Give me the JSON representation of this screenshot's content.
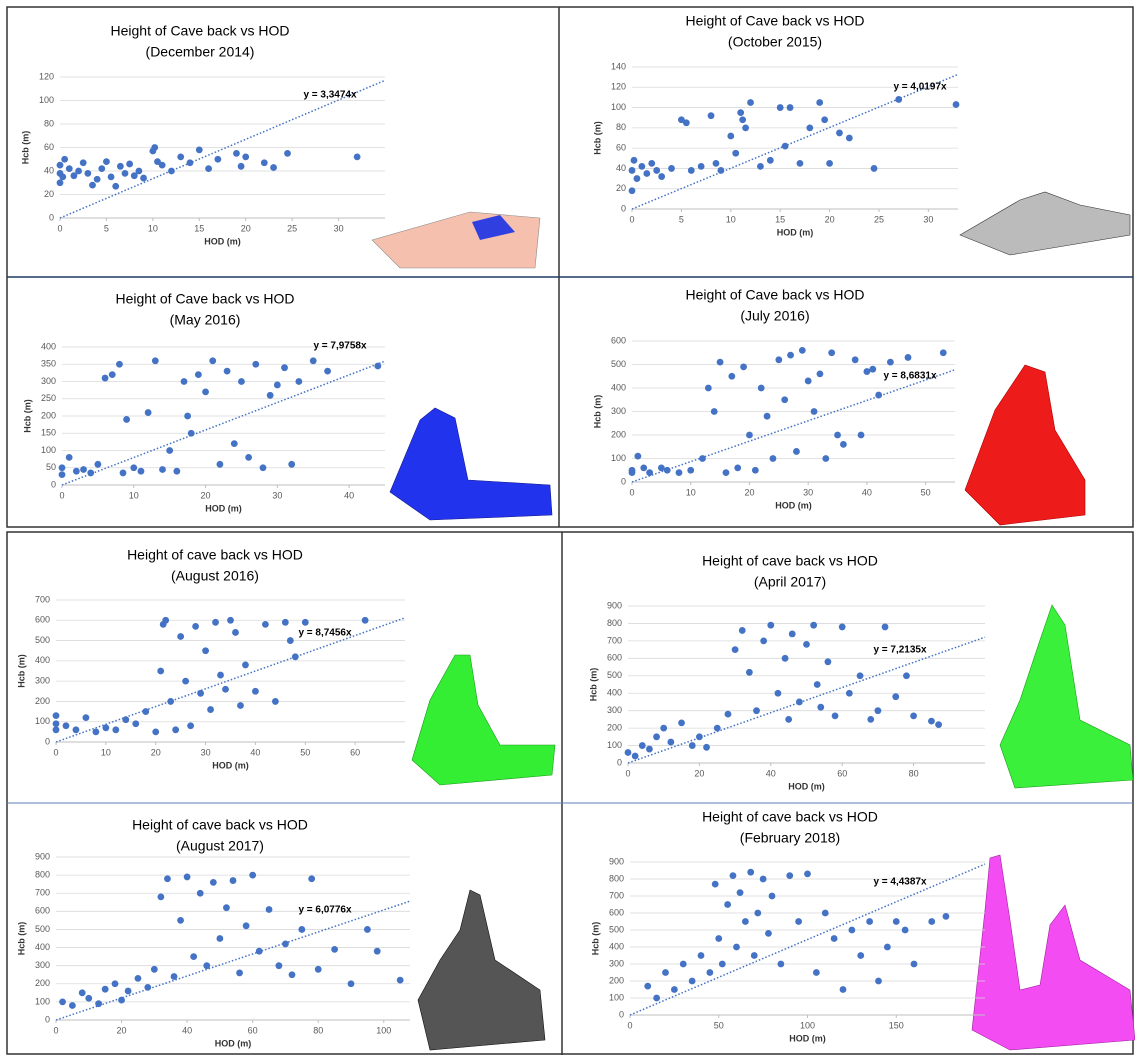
{
  "chart_data": [
    {
      "type": "scatter",
      "title": "Height of Cave back vs HOD",
      "subtitle": "(December 2014)",
      "x_label": "HOD (m)",
      "y_label": "Hcb (m)",
      "color": "#4472c4",
      "xlim": [
        0,
        35
      ],
      "ylim": [
        0,
        120
      ],
      "xticks": [
        0,
        5,
        10,
        15,
        20,
        25,
        30
      ],
      "yticks": [
        0,
        20,
        40,
        60,
        80,
        100,
        120
      ],
      "x": [
        0,
        0,
        0,
        0.3,
        0.5,
        1,
        1.5,
        2,
        2.5,
        3,
        3.5,
        4,
        4.5,
        5,
        5.5,
        6,
        6.5,
        7,
        7.5,
        8,
        8.5,
        9,
        10,
        10.2,
        10.5,
        11,
        12,
        13,
        14,
        15,
        16,
        17,
        19,
        19.5,
        20,
        22,
        23,
        24.5,
        32
      ],
      "values": [
        30,
        38,
        45,
        35,
        50,
        42,
        36,
        40,
        47,
        38,
        28,
        33,
        42,
        48,
        35,
        27,
        44,
        38,
        46,
        36,
        40,
        34,
        57,
        60,
        48,
        45,
        40,
        52,
        47,
        58,
        42,
        50,
        55,
        44,
        52,
        47,
        43,
        55,
        52
      ],
      "trendline": {
        "slope": 3.3474,
        "label": "y = 3,3474x"
      }
    },
    {
      "type": "scatter",
      "title": "Height of Cave back vs HOD",
      "subtitle": "(October 2015)",
      "x_label": "HOD (m)",
      "y_label": "Hcb (m)",
      "color": "#4472c4",
      "xlim": [
        0,
        33
      ],
      "ylim": [
        0,
        140
      ],
      "xticks": [
        0,
        5,
        10,
        15,
        20,
        25,
        30
      ],
      "yticks": [
        0,
        20,
        40,
        60,
        80,
        100,
        120,
        140
      ],
      "x": [
        0,
        0,
        0.2,
        0.5,
        1,
        1.5,
        2,
        2.5,
        3,
        4,
        5,
        5.5,
        6,
        7,
        8,
        8.5,
        9,
        10,
        10.5,
        11,
        11.2,
        11.5,
        12,
        13,
        14,
        15,
        15.5,
        16,
        17,
        18,
        19,
        19.5,
        20,
        21,
        22,
        24.5,
        27,
        32.8
      ],
      "values": [
        18,
        38,
        48,
        30,
        42,
        35,
        45,
        38,
        32,
        40,
        88,
        85,
        38,
        42,
        92,
        45,
        38,
        72,
        55,
        95,
        88,
        80,
        105,
        42,
        48,
        100,
        62,
        100,
        45,
        80,
        105,
        88,
        45,
        75,
        70,
        40,
        108,
        103
      ],
      "trendline": {
        "slope": 4.0197,
        "label": "y = 4,0197x"
      }
    },
    {
      "type": "scatter",
      "title": "Height of Cave back vs HOD",
      "subtitle": "(May 2016)",
      "x_label": "HOD (m)",
      "y_label": "Hcb (m)",
      "color": "#4472c4",
      "xlim": [
        0,
        45
      ],
      "ylim": [
        0,
        400
      ],
      "xticks": [
        0,
        10,
        20,
        30,
        40
      ],
      "yticks": [
        0,
        50,
        100,
        150,
        200,
        250,
        300,
        350,
        400
      ],
      "x": [
        0,
        0,
        1,
        2,
        3,
        4,
        5,
        6,
        7,
        8,
        8.5,
        9,
        10,
        11,
        12,
        13,
        14,
        15,
        16,
        17,
        17.5,
        18,
        19,
        20,
        21,
        22,
        23,
        24,
        25,
        26,
        27,
        28,
        29,
        30,
        31,
        32,
        33,
        35,
        37,
        44
      ],
      "values": [
        50,
        30,
        80,
        40,
        45,
        35,
        60,
        310,
        320,
        350,
        35,
        190,
        50,
        40,
        210,
        360,
        45,
        100,
        40,
        300,
        200,
        150,
        320,
        270,
        360,
        60,
        330,
        120,
        300,
        80,
        350,
        50,
        260,
        290,
        340,
        60,
        300,
        360,
        330,
        345
      ],
      "trendline": {
        "slope": 7.9758,
        "label": "y = 7,9758x"
      }
    },
    {
      "type": "scatter",
      "title": "Height of Cave back vs HOD",
      "subtitle": "(July 2016)",
      "x_label": "HOD (m)",
      "y_label": "Hcb (m)",
      "color": "#4472c4",
      "xlim": [
        0,
        55
      ],
      "ylim": [
        0,
        600
      ],
      "xticks": [
        0,
        10,
        20,
        30,
        40,
        50
      ],
      "yticks": [
        0,
        100,
        200,
        300,
        400,
        500,
        600
      ],
      "x": [
        0,
        0,
        1,
        2,
        3,
        5,
        6,
        8,
        10,
        12,
        13,
        14,
        15,
        16,
        17,
        18,
        19,
        20,
        21,
        22,
        23,
        24,
        25,
        26,
        27,
        28,
        29,
        30,
        31,
        32,
        33,
        34,
        35,
        36,
        38,
        39,
        40,
        41,
        42,
        44,
        47,
        53
      ],
      "values": [
        50,
        40,
        110,
        60,
        40,
        60,
        50,
        40,
        50,
        100,
        400,
        300,
        510,
        40,
        450,
        60,
        490,
        200,
        50,
        400,
        280,
        100,
        520,
        350,
        540,
        130,
        560,
        430,
        300,
        460,
        100,
        550,
        200,
        160,
        520,
        200,
        470,
        480,
        370,
        510,
        530,
        550
      ],
      "trendline": {
        "slope": 8.6831,
        "label": "y = 8,6831x"
      }
    },
    {
      "type": "scatter",
      "title": "Height of cave back vs HOD",
      "subtitle": "(August 2016)",
      "x_label": "HOD (m)",
      "y_label": "Hcb (m)",
      "color": "#4472c4",
      "xlim": [
        0,
        70
      ],
      "ylim": [
        0,
        700
      ],
      "xticks": [
        0,
        10,
        20,
        30,
        40,
        50,
        60
      ],
      "yticks": [
        0,
        100,
        200,
        300,
        400,
        500,
        600,
        700
      ],
      "x": [
        0,
        0,
        0,
        2,
        4,
        6,
        8,
        10,
        12,
        14,
        16,
        18,
        20,
        21,
        21.5,
        22,
        23,
        24,
        25,
        26,
        27,
        28,
        29,
        30,
        31,
        32,
        33,
        34,
        35,
        36,
        37,
        38,
        40,
        42,
        44,
        46,
        47,
        48,
        50,
        62
      ],
      "values": [
        130,
        60,
        90,
        80,
        60,
        120,
        50,
        70,
        60,
        110,
        90,
        150,
        50,
        350,
        580,
        600,
        200,
        60,
        520,
        300,
        80,
        570,
        240,
        450,
        160,
        590,
        330,
        260,
        600,
        540,
        180,
        380,
        250,
        580,
        200,
        590,
        500,
        420,
        590,
        600
      ],
      "trendline": {
        "slope": 8.7456,
        "label": "y = 8,7456x"
      }
    },
    {
      "type": "scatter",
      "title": "Height of cave back vs HOD",
      "subtitle": "(April 2017)",
      "x_label": "HOD (m)",
      "y_label": "Hcb (m)",
      "color": "#4472c4",
      "xlim": [
        0,
        100
      ],
      "ylim": [
        0,
        900
      ],
      "xticks": [
        0,
        20,
        40,
        60,
        80
      ],
      "yticks": [
        0,
        100,
        200,
        300,
        400,
        500,
        600,
        700,
        800,
        900
      ],
      "x": [
        0,
        2,
        4,
        6,
        8,
        10,
        12,
        15,
        18,
        20,
        22,
        25,
        28,
        30,
        32,
        34,
        36,
        38,
        40,
        42,
        44,
        45,
        46,
        48,
        50,
        52,
        53,
        54,
        56,
        58,
        60,
        62,
        65,
        68,
        70,
        72,
        75,
        78,
        80,
        85,
        87
      ],
      "values": [
        60,
        40,
        100,
        80,
        150,
        200,
        120,
        230,
        100,
        150,
        90,
        200,
        280,
        650,
        760,
        520,
        300,
        700,
        790,
        400,
        600,
        250,
        740,
        350,
        680,
        790,
        450,
        320,
        580,
        270,
        780,
        400,
        500,
        250,
        300,
        780,
        380,
        500,
        270,
        240,
        220
      ],
      "trendline": {
        "slope": 7.2135,
        "label": "y = 7,2135x"
      }
    },
    {
      "type": "scatter",
      "title": "Height of cave back vs HOD",
      "subtitle": "(August 2017)",
      "x_label": "HOD (m)",
      "y_label": "Hcb (m)",
      "color": "#4472c4",
      "xlim": [
        0,
        108
      ],
      "ylim": [
        0,
        900
      ],
      "xticks": [
        0,
        20,
        40,
        60,
        80,
        100
      ],
      "yticks": [
        0,
        100,
        200,
        300,
        400,
        500,
        600,
        700,
        800,
        900
      ],
      "x": [
        2,
        5,
        8,
        10,
        13,
        15,
        18,
        20,
        22,
        25,
        28,
        30,
        32,
        34,
        36,
        38,
        40,
        42,
        44,
        46,
        48,
        50,
        52,
        54,
        56,
        58,
        60,
        62,
        65,
        68,
        70,
        72,
        75,
        78,
        80,
        85,
        90,
        95,
        98,
        105
      ],
      "values": [
        100,
        80,
        150,
        120,
        90,
        170,
        200,
        110,
        160,
        230,
        180,
        280,
        680,
        780,
        240,
        550,
        790,
        350,
        700,
        300,
        760,
        450,
        620,
        770,
        260,
        520,
        800,
        380,
        610,
        300,
        420,
        250,
        500,
        780,
        280,
        390,
        200,
        500,
        380,
        220
      ],
      "trendline": {
        "slope": 6.0776,
        "label": "y = 6,0776x"
      }
    },
    {
      "type": "scatter",
      "title": "Height of cave back vs HOD",
      "subtitle": "(February 2018)",
      "x_label": "HOD (m)",
      "y_label": "Hcb (m)",
      "color": "#4472c4",
      "xlim": [
        0,
        200
      ],
      "ylim": [
        0,
        900
      ],
      "xticks": [
        0,
        50,
        100,
        150
      ],
      "yticks": [
        0,
        100,
        200,
        300,
        400,
        500,
        600,
        700,
        800,
        900
      ],
      "x": [
        10,
        15,
        20,
        25,
        30,
        35,
        40,
        45,
        48,
        50,
        52,
        55,
        58,
        60,
        62,
        65,
        68,
        70,
        72,
        75,
        78,
        80,
        85,
        90,
        95,
        100,
        105,
        110,
        115,
        120,
        125,
        130,
        135,
        140,
        145,
        150,
        155,
        160,
        170,
        178
      ],
      "values": [
        170,
        100,
        250,
        150,
        300,
        200,
        350,
        250,
        770,
        450,
        300,
        650,
        820,
        400,
        720,
        550,
        840,
        350,
        600,
        800,
        480,
        700,
        300,
        820,
        550,
        830,
        250,
        600,
        450,
        150,
        500,
        350,
        550,
        200,
        400,
        550,
        500,
        300,
        550,
        580
      ],
      "trendline": {
        "slope": 4.4387,
        "label": "y = 4,4387x"
      }
    }
  ]
}
